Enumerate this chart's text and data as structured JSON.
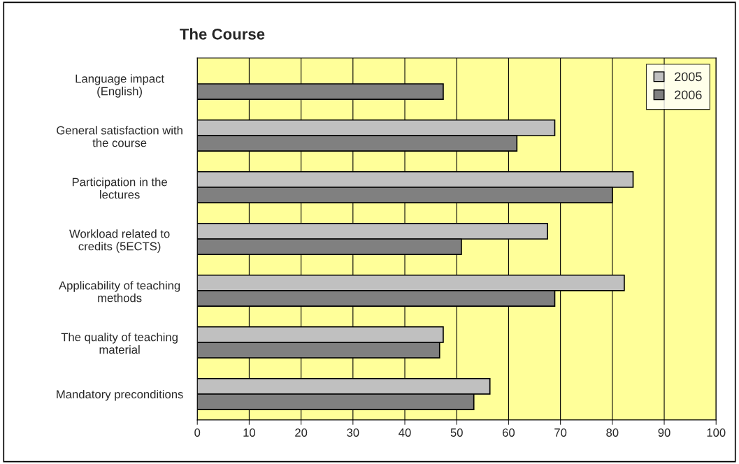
{
  "chart_data": {
    "type": "bar",
    "orientation": "horizontal",
    "title": "The Course",
    "categories": [
      "Language impact\n(English)",
      "General satisfaction with\nthe course",
      "Participation in the\nlectures",
      "Workload related to\ncredits (5ECTS)",
      "Applicability of teaching\nmethods",
      "The quality of teaching\nmaterial",
      "Mandatory preconditions"
    ],
    "series": [
      {
        "name": "2005",
        "color": "#c0c0c0",
        "values": [
          null,
          68.9,
          84.0,
          67.5,
          82.3,
          47.4,
          56.4
        ]
      },
      {
        "name": "2006",
        "color": "#808080",
        "values": [
          47.4,
          61.6,
          80.0,
          50.9,
          68.9,
          46.7,
          53.3
        ]
      }
    ],
    "xlim": [
      0,
      100
    ],
    "xticks": [
      0,
      10,
      20,
      30,
      40,
      50,
      60,
      70,
      80,
      90,
      100
    ],
    "grid": "x",
    "legend": "top right"
  }
}
